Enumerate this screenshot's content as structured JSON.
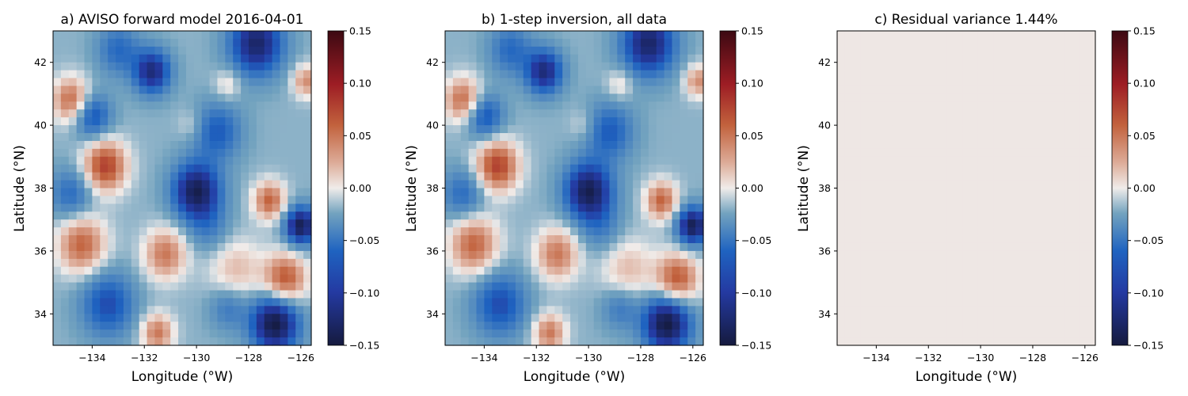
{
  "chart_data": [
    {
      "type": "heatmap",
      "title": "a) AVISO forward model 2016-04-01",
      "xlabel": "Longitude (°W)",
      "ylabel": "Latitude (°N)",
      "xlim": [
        -135.5,
        -125.6
      ],
      "ylim": [
        33.0,
        43.0
      ],
      "xticks": [
        -134,
        -132,
        -130,
        -128,
        -126
      ],
      "yticks": [
        34,
        36,
        38,
        40,
        42
      ],
      "colorbar": {
        "colormap": "balance",
        "range": [
          -0.15,
          0.15
        ],
        "ticks": [
          "0.15",
          "0.10",
          "0.05",
          "0.00",
          "−0.05",
          "−0.10",
          "−0.15"
        ]
      },
      "colors": {
        "negative": "#1f5cb8",
        "positive": "#b9472b",
        "center": "#f0ecea"
      },
      "field": [
        {
          "lon": -134.8,
          "lat": 40.8,
          "value": 0.08,
          "radius": 0.7
        },
        {
          "lon": -133.5,
          "lat": 38.7,
          "value": 0.1,
          "radius": 0.8
        },
        {
          "lon": -134.4,
          "lat": 36.2,
          "value": 0.08,
          "radius": 0.9
        },
        {
          "lon": -131.2,
          "lat": 35.9,
          "value": 0.07,
          "radius": 0.8
        },
        {
          "lon": -131.5,
          "lat": 33.4,
          "value": 0.07,
          "radius": 0.6
        },
        {
          "lon": -128.5,
          "lat": 35.4,
          "value": 0.04,
          "radius": 1.0
        },
        {
          "lon": -126.6,
          "lat": 35.1,
          "value": 0.09,
          "radius": 0.8
        },
        {
          "lon": -127.2,
          "lat": 37.6,
          "value": 0.08,
          "radius": 0.6
        },
        {
          "lon": -125.8,
          "lat": 41.4,
          "value": 0.06,
          "radius": 0.5
        },
        {
          "lon": -128.8,
          "lat": 41.3,
          "value": 0.03,
          "radius": 0.5
        },
        {
          "lon": -130.2,
          "lat": 40.0,
          "value": 0.02,
          "radius": 0.5
        },
        {
          "lon": -131.7,
          "lat": 41.7,
          "value": -0.1,
          "radius": 0.7
        },
        {
          "lon": -127.7,
          "lat": 42.6,
          "value": -0.11,
          "radius": 1.0
        },
        {
          "lon": -130.0,
          "lat": 37.9,
          "value": -0.12,
          "radius": 0.9
        },
        {
          "lon": -126.0,
          "lat": 36.8,
          "value": -0.12,
          "radius": 0.6
        },
        {
          "lon": -127.0,
          "lat": 33.7,
          "value": -0.13,
          "radius": 0.9
        },
        {
          "lon": -133.4,
          "lat": 34.3,
          "value": -0.07,
          "radius": 1.0
        },
        {
          "lon": -134.0,
          "lat": 40.3,
          "value": -0.07,
          "radius": 0.7
        },
        {
          "lon": -129.2,
          "lat": 39.8,
          "value": -0.06,
          "radius": 0.9
        },
        {
          "lon": -133.0,
          "lat": 42.4,
          "value": -0.05,
          "radius": 0.8
        },
        {
          "lon": -134.8,
          "lat": 37.8,
          "value": -0.05,
          "radius": 0.8
        },
        {
          "lon": -129.5,
          "lat": 36.7,
          "value": -0.03,
          "radius": 0.8
        },
        {
          "lon": -128.8,
          "lat": 34.2,
          "value": -0.04,
          "radius": 0.7
        }
      ]
    },
    {
      "type": "heatmap",
      "title": "b) 1-step inversion, all data",
      "xlabel": "Longitude (°W)",
      "ylabel": "Latitude (°N)",
      "xlim": [
        -135.5,
        -125.6
      ],
      "ylim": [
        33.0,
        43.0
      ],
      "xticks": [
        -134,
        -132,
        -130,
        -128,
        -126
      ],
      "yticks": [
        34,
        36,
        38,
        40,
        42
      ],
      "colorbar": {
        "colormap": "balance",
        "range": [
          -0.15,
          0.15
        ],
        "ticks": [
          "0.15",
          "0.10",
          "0.05",
          "0.00",
          "−0.05",
          "−0.10",
          "−0.15"
        ]
      },
      "field_same_as": "a"
    },
    {
      "type": "heatmap",
      "title": "c) Residual variance 1.44%",
      "xlabel": "Longitude (°W)",
      "ylabel": "Latitude (°N)",
      "xlim": [
        -135.5,
        -125.6
      ],
      "ylim": [
        33.0,
        43.0
      ],
      "xticks": [
        -134,
        -132,
        -130,
        -128,
        -126
      ],
      "yticks": [
        34,
        36,
        38,
        40,
        42
      ],
      "colorbar": {
        "colormap": "balance",
        "range": [
          -0.15,
          0.15
        ],
        "ticks": [
          "0.15",
          "0.10",
          "0.05",
          "0.00",
          "−0.05",
          "−0.10",
          "−0.15"
        ]
      },
      "uniform_value": 0.002
    }
  ]
}
